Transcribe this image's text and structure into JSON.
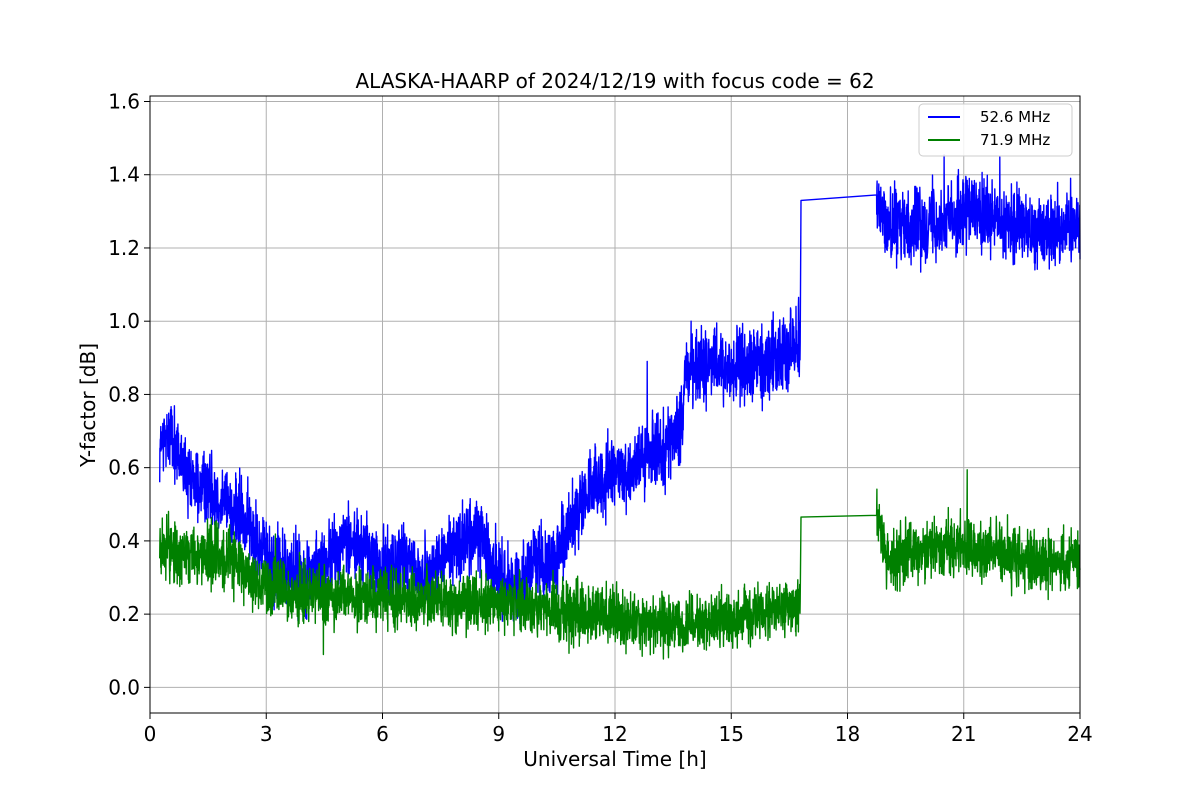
{
  "chart_data": {
    "type": "line",
    "title": "ALASKA-HAARP of 2024/12/19 with focus code = 62",
    "xlabel": "Universal Time [h]",
    "ylabel": "Y-factor [dB]",
    "xlim": [
      0,
      24
    ],
    "ylim": [
      -0.07,
      1.615
    ],
    "xticks": [
      0,
      3,
      6,
      9,
      12,
      15,
      18,
      21,
      24
    ],
    "xtick_labels": [
      "0",
      "3",
      "6",
      "9",
      "12",
      "15",
      "18",
      "21",
      "24"
    ],
    "yticks": [
      0.0,
      0.2,
      0.4,
      0.6,
      0.8,
      1.0,
      1.2,
      1.4,
      1.6
    ],
    "ytick_labels": [
      "0.0",
      "0.2",
      "0.4",
      "0.6",
      "0.8",
      "1.0",
      "1.2",
      "1.4",
      "1.6"
    ],
    "grid": true,
    "legend_position": "top-right",
    "gap": {
      "start": 16.78,
      "end": 18.75
    },
    "series": [
      {
        "name": "52.6 MHz",
        "color": "#0000ff",
        "segments": [
          {
            "x": 0.25,
            "y": 0.65
          },
          {
            "x": 0.5,
            "y": 0.7
          },
          {
            "x": 0.8,
            "y": 0.62
          },
          {
            "x": 1.0,
            "y": 0.55
          },
          {
            "x": 1.5,
            "y": 0.55
          },
          {
            "x": 2.0,
            "y": 0.5
          },
          {
            "x": 2.5,
            "y": 0.45
          },
          {
            "x": 3.0,
            "y": 0.35
          },
          {
            "x": 3.5,
            "y": 0.32
          },
          {
            "x": 4.0,
            "y": 0.3
          },
          {
            "x": 4.5,
            "y": 0.33
          },
          {
            "x": 5.0,
            "y": 0.4
          },
          {
            "x": 5.5,
            "y": 0.38
          },
          {
            "x": 6.0,
            "y": 0.32
          },
          {
            "x": 6.5,
            "y": 0.35
          },
          {
            "x": 7.0,
            "y": 0.3
          },
          {
            "x": 7.5,
            "y": 0.34
          },
          {
            "x": 8.0,
            "y": 0.4
          },
          {
            "x": 8.5,
            "y": 0.42
          },
          {
            "x": 9.0,
            "y": 0.3
          },
          {
            "x": 9.5,
            "y": 0.28
          },
          {
            "x": 10.0,
            "y": 0.35
          },
          {
            "x": 10.5,
            "y": 0.34
          },
          {
            "x": 11.0,
            "y": 0.48
          },
          {
            "x": 11.5,
            "y": 0.55
          },
          {
            "x": 12.0,
            "y": 0.58
          },
          {
            "x": 12.5,
            "y": 0.6
          },
          {
            "x": 13.0,
            "y": 0.64
          },
          {
            "x": 13.5,
            "y": 0.68
          },
          {
            "x": 13.75,
            "y": 0.7
          },
          {
            "x": 13.8,
            "y": 0.88
          },
          {
            "x": 14.5,
            "y": 0.88
          },
          {
            "x": 15.0,
            "y": 0.87
          },
          {
            "x": 15.5,
            "y": 0.88
          },
          {
            "x": 16.0,
            "y": 0.89
          },
          {
            "x": 16.5,
            "y": 0.93
          },
          {
            "x": 16.78,
            "y": 0.96
          },
          {
            "x": 16.8,
            "y": 1.33
          },
          {
            "x": 18.75,
            "y": 1.345
          },
          {
            "x": 19.0,
            "y": 1.26
          },
          {
            "x": 19.5,
            "y": 1.26
          },
          {
            "x": 20.0,
            "y": 1.27
          },
          {
            "x": 20.5,
            "y": 1.28
          },
          {
            "x": 21.0,
            "y": 1.3
          },
          {
            "x": 21.5,
            "y": 1.29
          },
          {
            "x": 22.0,
            "y": 1.26
          },
          {
            "x": 22.5,
            "y": 1.26
          },
          {
            "x": 23.0,
            "y": 1.25
          },
          {
            "x": 23.5,
            "y": 1.25
          },
          {
            "x": 24.0,
            "y": 1.27
          }
        ]
      },
      {
        "name": "71.9 MHz",
        "color": "#008000",
        "segments": [
          {
            "x": 0.25,
            "y": 0.38
          },
          {
            "x": 1.0,
            "y": 0.37
          },
          {
            "x": 2.0,
            "y": 0.35
          },
          {
            "x": 3.0,
            "y": 0.28
          },
          {
            "x": 4.0,
            "y": 0.25
          },
          {
            "x": 5.0,
            "y": 0.25
          },
          {
            "x": 6.0,
            "y": 0.24
          },
          {
            "x": 7.0,
            "y": 0.24
          },
          {
            "x": 8.0,
            "y": 0.23
          },
          {
            "x": 9.0,
            "y": 0.23
          },
          {
            "x": 10.0,
            "y": 0.22
          },
          {
            "x": 11.0,
            "y": 0.2
          },
          {
            "x": 12.0,
            "y": 0.19
          },
          {
            "x": 13.0,
            "y": 0.18
          },
          {
            "x": 14.0,
            "y": 0.17
          },
          {
            "x": 15.0,
            "y": 0.18
          },
          {
            "x": 16.0,
            "y": 0.21
          },
          {
            "x": 16.78,
            "y": 0.23
          },
          {
            "x": 16.8,
            "y": 0.465
          },
          {
            "x": 18.75,
            "y": 0.47
          },
          {
            "x": 19.0,
            "y": 0.35
          },
          {
            "x": 20.0,
            "y": 0.37
          },
          {
            "x": 21.0,
            "y": 0.39
          },
          {
            "x": 22.0,
            "y": 0.36
          },
          {
            "x": 23.0,
            "y": 0.34
          },
          {
            "x": 24.0,
            "y": 0.35
          }
        ]
      }
    ]
  }
}
